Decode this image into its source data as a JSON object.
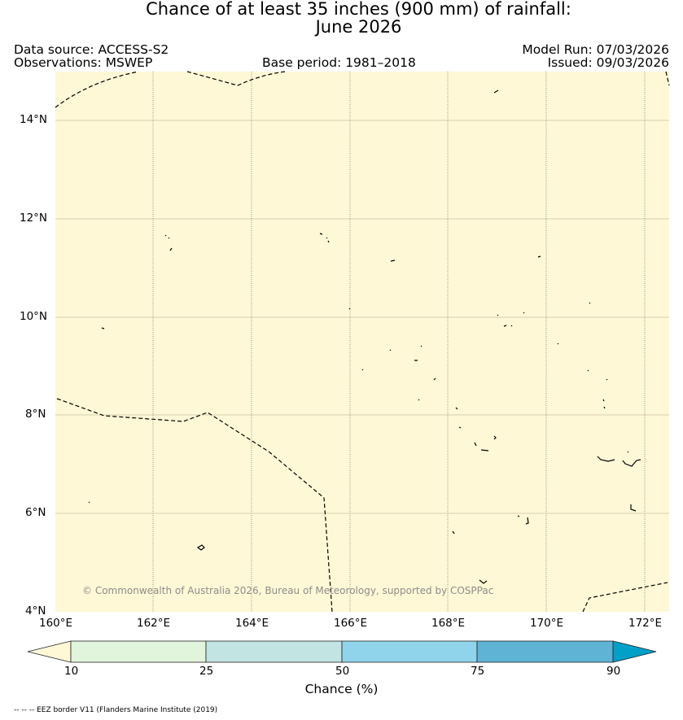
{
  "title": {
    "line1": "Chance of at least 35 inches (900  mm) of rainfall:",
    "line2": "June 2026"
  },
  "header": {
    "data_source": "Data source: ACCESS-S2",
    "observations": "Observations: MSWEP",
    "base_period": "Base period: 1981–2018",
    "model_run": "Model Run: 07/03/2026",
    "issued": "Issued: 09/03/2026"
  },
  "map": {
    "background_color": "#fff8d6",
    "lon_ticks": [
      "160°E",
      "162°E",
      "164°E",
      "166°E",
      "168°E",
      "170°E",
      "172°E"
    ],
    "lat_ticks": [
      "14°N",
      "12°N",
      "10°N",
      "8°N",
      "6°N",
      "4°N"
    ],
    "lon_range": [
      160,
      172.5
    ],
    "lat_range": [
      4,
      15
    ],
    "copyright": "© Commonwealth of Australia 2026, Bureau of Meteorology, supported by COSPPac"
  },
  "colorbar": {
    "label": "Chance (%)",
    "ticks": [
      "10",
      "25",
      "50",
      "75",
      "90"
    ],
    "colors": [
      "#fff8d6",
      "#e0f5dc",
      "#c2e4e2",
      "#8fd4ea",
      "#5fb4d6",
      "#00a0c8"
    ]
  },
  "footer": {
    "legend": "-- -- -- EEZ border V11 (Flanders Marine Institute (2019)"
  }
}
